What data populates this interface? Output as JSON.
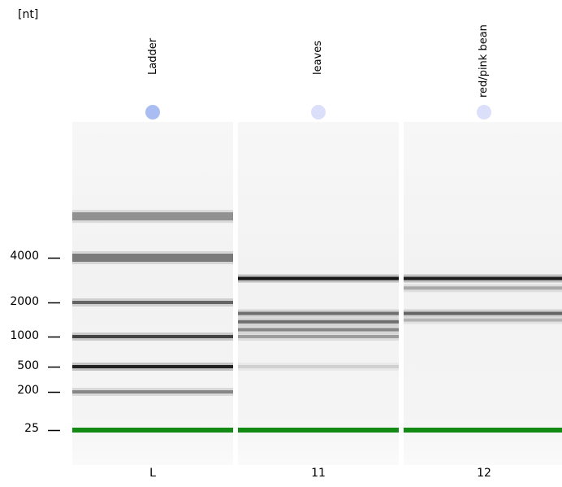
{
  "chart_data": {
    "type": "gel",
    "unit_label": "[nt]",
    "size_axis": {
      "ticks": [
        {
          "label": "4000",
          "value": 4000
        },
        {
          "label": "2000",
          "value": 2000
        },
        {
          "label": "1000",
          "value": 1000
        },
        {
          "label": "500",
          "value": 500
        },
        {
          "label": "200",
          "value": 200
        },
        {
          "label": "25",
          "value": 25
        }
      ]
    },
    "lanes": [
      {
        "id": "L",
        "name": "Ladder",
        "dot_color": "#a9bdf2",
        "bands": [
          {
            "size_nt": 6000,
            "intensity": 0.4
          },
          {
            "size_nt": 4000,
            "intensity": 0.5
          },
          {
            "size_nt": 2000,
            "intensity": 0.6
          },
          {
            "size_nt": 1000,
            "intensity": 0.75
          },
          {
            "size_nt": 500,
            "intensity": 0.9
          },
          {
            "size_nt": 200,
            "intensity": 0.45
          }
        ]
      },
      {
        "id": "11",
        "name": "leaves",
        "dot_color": "#dcdffa",
        "bands": [
          {
            "size_nt": 2900,
            "intensity": 0.95
          },
          {
            "size_nt": 1600,
            "intensity": 0.55
          },
          {
            "size_nt": 1350,
            "intensity": 0.55
          },
          {
            "size_nt": 1150,
            "intensity": 0.45
          },
          {
            "size_nt": 1000,
            "intensity": 0.35
          },
          {
            "size_nt": 500,
            "intensity": 0.12
          }
        ]
      },
      {
        "id": "12",
        "name": "red/pink bean",
        "dot_color": "#dcdffa",
        "bands": [
          {
            "size_nt": 2900,
            "intensity": 0.92
          },
          {
            "size_nt": 2500,
            "intensity": 0.3
          },
          {
            "size_nt": 1600,
            "intensity": 0.6
          },
          {
            "size_nt": 1400,
            "intensity": 0.25
          }
        ]
      }
    ],
    "marker": {
      "size_nt": 25,
      "color": "#138a13"
    }
  }
}
